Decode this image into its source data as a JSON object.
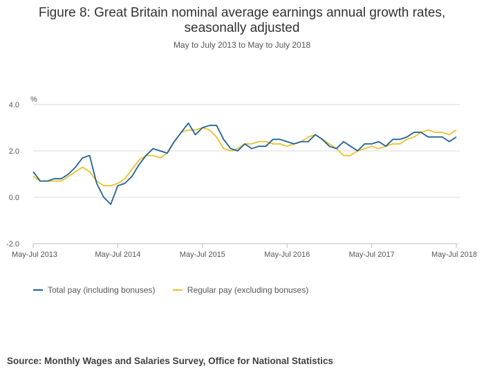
{
  "title_line1": "Figure 8: Great Britain nominal average earnings annual growth rates,",
  "title_line2": "seasonally adjusted",
  "subtitle": "May to July 2013 to May to July 2018",
  "source": "Source: Monthly Wages and Salaries Survey, Office for National Statistics",
  "colors": {
    "total": "#206095",
    "regular": "#e8c12b"
  },
  "chart_data": {
    "type": "line",
    "ylabel": "%",
    "ylim": [
      -2.0,
      4.0
    ],
    "yticks": [
      "4.0",
      "2.0",
      "0.0",
      "-2.0"
    ],
    "ytick_values": [
      4.0,
      2.0,
      0.0,
      -2.0
    ],
    "xlim": [
      0,
      60
    ],
    "xticks": [
      "May-Jul 2013",
      "May-Jul 2014",
      "May-Jul 2015",
      "May-Jul 2016",
      "May-Jul 2017",
      "May-Jul 2018"
    ],
    "xtick_index": [
      0,
      12,
      24,
      36,
      48,
      60
    ],
    "legend_position": "bottom-left",
    "series": [
      {
        "name": "Total pay (including bonuses)",
        "color": "#206095",
        "values": [
          1.1,
          0.7,
          0.7,
          0.8,
          0.8,
          1.0,
          1.3,
          1.7,
          1.8,
          0.6,
          0.0,
          -0.3,
          0.5,
          0.6,
          0.9,
          1.4,
          1.8,
          2.1,
          2.0,
          1.9,
          2.4,
          2.8,
          3.2,
          2.7,
          3.0,
          3.1,
          3.1,
          2.5,
          2.1,
          2.0,
          2.3,
          2.1,
          2.2,
          2.2,
          2.5,
          2.5,
          2.4,
          2.3,
          2.4,
          2.4,
          2.7,
          2.5,
          2.2,
          2.1,
          2.4,
          2.2,
          2.0,
          2.3,
          2.3,
          2.4,
          2.2,
          2.5,
          2.5,
          2.6,
          2.8,
          2.8,
          2.6,
          2.6,
          2.6,
          2.4,
          2.6
        ]
      },
      {
        "name": "Regular pay (excluding bonuses)",
        "color": "#e8c12b",
        "values": [
          0.9,
          0.7,
          0.7,
          0.7,
          0.7,
          0.9,
          1.1,
          1.3,
          1.1,
          0.7,
          0.5,
          0.5,
          0.6,
          0.8,
          1.2,
          1.6,
          1.8,
          1.8,
          1.7,
          1.9,
          2.4,
          2.8,
          2.9,
          2.9,
          3.0,
          2.9,
          2.6,
          2.1,
          2.0,
          2.1,
          2.3,
          2.3,
          2.4,
          2.4,
          2.3,
          2.3,
          2.2,
          2.3,
          2.4,
          2.6,
          2.7,
          2.5,
          2.3,
          2.1,
          1.8,
          1.8,
          2.0,
          2.1,
          2.2,
          2.1,
          2.2,
          2.3,
          2.3,
          2.5,
          2.6,
          2.8,
          2.9,
          2.8,
          2.8,
          2.7,
          2.9
        ]
      }
    ]
  }
}
